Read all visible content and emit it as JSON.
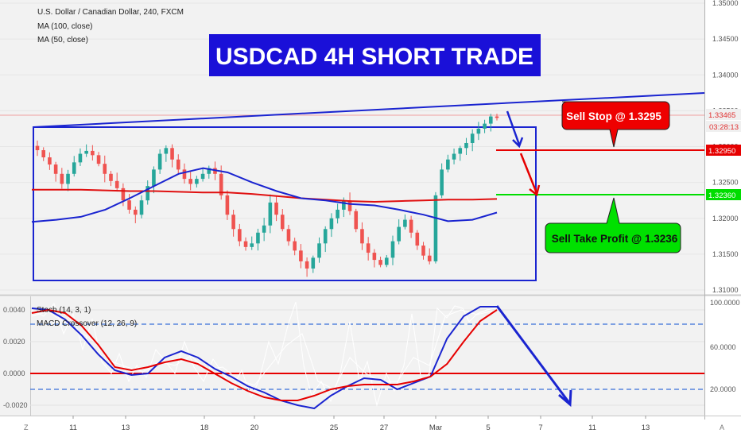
{
  "header": {
    "symbol_line": "U.S. Dollar / Canadian Dollar, 240, FXCM",
    "indicator_1": "MA (100, close)",
    "indicator_2": "MA (50, close)"
  },
  "banner": {
    "title": "USDCAD 4H SHORT TRADE",
    "bg": "#1a10d8",
    "fg": "#ffffff"
  },
  "callouts": {
    "sell_stop": "Sell Stop @ 1.3295",
    "take_profit": "Sell Take Profit @ 1.3236"
  },
  "price_axis": {
    "ticks": [
      "1.35000",
      "1.34500",
      "1.34000",
      "1.33500",
      "1.33000",
      "1.32500",
      "1.32000",
      "1.31500",
      "1.31000"
    ],
    "tick_values": [
      1.35,
      1.345,
      1.34,
      1.335,
      1.33,
      1.325,
      1.32,
      1.315,
      1.31
    ],
    "current_price": "1.33465",
    "countdown": "03:28:13",
    "stop_level": "1.32950",
    "tp_level": "1.32360"
  },
  "indicator_axis_left": {
    "ticks": [
      "0.0040",
      "0.0020",
      "0.0000",
      "-0.0020"
    ]
  },
  "indicator_axis_right": {
    "ticks": [
      "100.0000",
      "60.0000",
      "20.0000"
    ]
  },
  "indicator_labels": {
    "stoch": "Stoch (14, 3, 1)",
    "macd": "MACD Crossover (12, 26, 9)"
  },
  "time_axis": {
    "labels": [
      "11",
      "13",
      "18",
      "20",
      "25",
      "27",
      "Mar",
      "5",
      "7",
      "11",
      "13"
    ],
    "left_glyph": "Z",
    "right_glyph": "A"
  },
  "colors": {
    "bull": "#26a69a",
    "bear": "#ef5350",
    "ma100": "#e01010",
    "ma50": "#1a24d0",
    "box": "#1a24d0",
    "green": "#00dd00",
    "red": "#e60000"
  },
  "chart_data": {
    "type": "candlestick",
    "title": "U.S. Dollar / Canadian Dollar, 240, FXCM",
    "ylim": [
      1.3095,
      1.3505
    ],
    "close_path": [
      1.3295,
      1.3285,
      1.3275,
      1.3262,
      1.3248,
      1.3262,
      1.3278,
      1.329,
      1.3294,
      1.3288,
      1.3276,
      1.3262,
      1.3252,
      1.3242,
      1.3225,
      1.3212,
      1.3205,
      1.3225,
      1.3245,
      1.3268,
      1.329,
      1.3298,
      1.3282,
      1.3268,
      1.3255,
      1.3248,
      1.3255,
      1.3262,
      1.327,
      1.3262,
      1.3232,
      1.3205,
      1.3185,
      1.3168,
      1.316,
      1.3165,
      1.318,
      1.319,
      1.3222,
      1.3205,
      1.3185,
      1.3168,
      1.3155,
      1.314,
      1.313,
      1.3145,
      1.3165,
      1.3185,
      1.32,
      1.3212,
      1.3225,
      1.321,
      1.3185,
      1.3165,
      1.3152,
      1.3142,
      1.3135,
      1.3145,
      1.3168,
      1.3188,
      1.3198,
      1.318,
      1.3162,
      1.3148,
      1.314,
      1.3232,
      1.3268,
      1.3282,
      1.329,
      1.3298,
      1.3305,
      1.3318,
      1.3325,
      1.3332,
      1.3342,
      1.334
    ],
    "ma100": [
      1.324,
      1.324,
      1.324,
      1.3239,
      1.3238,
      1.3238,
      1.3237,
      1.3236,
      1.3236,
      1.3234,
      1.3231,
      1.3228,
      1.3226,
      1.3224,
      1.3223,
      1.3224,
      1.3225,
      1.3226,
      1.3226,
      1.3227
    ],
    "ma50": [
      1.3195,
      1.3198,
      1.3202,
      1.3212,
      1.3228,
      1.3245,
      1.3262,
      1.327,
      1.3264,
      1.325,
      1.3238,
      1.3228,
      1.3225,
      1.322,
      1.3218,
      1.3212,
      1.3205,
      1.3196,
      1.3198,
      1.3208
    ],
    "stop_price": 1.3295,
    "take_profit_price": 1.3236,
    "current_price": 1.33465,
    "macd_ylim": [
      -0.0024,
      0.0045
    ],
    "macd_line": [
      0.0041,
      0.004,
      0.0034,
      0.0024,
      0.0012,
      0.0002,
      -0.0001,
      0.0,
      0.001,
      0.0014,
      0.001,
      0.0003,
      -0.0002,
      -0.0008,
      -0.0012,
      -0.0017,
      -0.002,
      -0.0022,
      -0.0014,
      -0.0008,
      -0.0003,
      -0.0004,
      -0.001,
      -0.0006,
      -0.0002,
      0.0022,
      0.0036,
      0.0042,
      0.0042
    ],
    "signal_line": [
      0.0038,
      0.004,
      0.0038,
      0.003,
      0.0018,
      0.0004,
      0.0002,
      0.0004,
      0.0007,
      0.0009,
      0.0006,
      0.0,
      -0.0006,
      -0.0011,
      -0.0015,
      -0.0017,
      -0.0017,
      -0.0014,
      -0.001,
      -0.0008,
      -0.0007,
      -0.0007,
      -0.0007,
      -0.0005,
      -0.0002,
      0.0006,
      0.002,
      0.0033,
      0.004
    ],
    "stoch_upper": 80,
    "stoch_lower": 20
  }
}
